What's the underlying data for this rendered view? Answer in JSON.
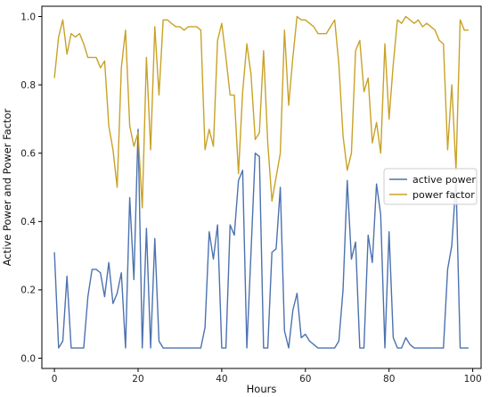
{
  "chart_data": {
    "type": "line",
    "title": "",
    "xlabel": "Hours",
    "ylabel": "Active Power and Power Factor",
    "xlim": [
      -3,
      102
    ],
    "ylim": [
      -0.03,
      1.03
    ],
    "xticks": [
      0,
      20,
      40,
      60,
      80,
      100
    ],
    "yticks": [
      0.0,
      0.2,
      0.4,
      0.6,
      0.8,
      1.0
    ],
    "x_tick_labels": [
      "0",
      "20",
      "40",
      "60",
      "80",
      "100"
    ],
    "y_tick_labels": [
      "0.0",
      "0.2",
      "0.4",
      "0.6",
      "0.8",
      "1.0"
    ],
    "grid": false,
    "legend": "center-right",
    "series": [
      {
        "name": "active power",
        "color": "#4c72b0",
        "x": [
          0,
          1,
          2,
          3,
          4,
          5,
          6,
          7,
          8,
          9,
          10,
          11,
          12,
          13,
          14,
          15,
          16,
          17,
          18,
          19,
          20,
          21,
          22,
          23,
          24,
          25,
          26,
          27,
          28,
          29,
          30,
          31,
          32,
          33,
          34,
          35,
          36,
          37,
          38,
          39,
          40,
          41,
          42,
          43,
          44,
          45,
          46,
          47,
          48,
          49,
          50,
          51,
          52,
          53,
          54,
          55,
          56,
          57,
          58,
          59,
          60,
          61,
          62,
          63,
          64,
          65,
          66,
          67,
          68,
          69,
          70,
          71,
          72,
          73,
          74,
          75,
          76,
          77,
          78,
          79,
          80,
          81,
          82,
          83,
          84,
          85,
          86,
          87,
          88,
          89,
          90,
          91,
          92,
          93,
          94,
          95,
          96,
          97,
          98,
          99
        ],
        "values": [
          0.31,
          0.03,
          0.05,
          0.24,
          0.03,
          0.03,
          0.03,
          0.03,
          0.18,
          0.26,
          0.26,
          0.25,
          0.18,
          0.28,
          0.16,
          0.19,
          0.25,
          0.03,
          0.47,
          0.23,
          0.67,
          0.03,
          0.38,
          0.03,
          0.35,
          0.05,
          0.03,
          0.03,
          0.03,
          0.03,
          0.03,
          0.03,
          0.03,
          0.03,
          0.03,
          0.03,
          0.09,
          0.37,
          0.29,
          0.39,
          0.03,
          0.03,
          0.39,
          0.36,
          0.52,
          0.55,
          0.03,
          0.31,
          0.6,
          0.59,
          0.03,
          0.03,
          0.31,
          0.32,
          0.5,
          0.08,
          0.03,
          0.14,
          0.19,
          0.06,
          0.07,
          0.05,
          0.04,
          0.03,
          0.03,
          0.03,
          0.03,
          0.03,
          0.05,
          0.2,
          0.52,
          0.29,
          0.34,
          0.03,
          0.03,
          0.36,
          0.28,
          0.51,
          0.42,
          0.03,
          0.37,
          0.06,
          0.03,
          0.03,
          0.06,
          0.04,
          0.03,
          0.03,
          0.03,
          0.03,
          0.03,
          0.03,
          0.03,
          0.03,
          0.26,
          0.33,
          0.52,
          0.03,
          0.03,
          0.03
        ]
      },
      {
        "name": "power factor",
        "color": "#c9a227",
        "x": [
          0,
          1,
          2,
          3,
          4,
          5,
          6,
          7,
          8,
          9,
          10,
          11,
          12,
          13,
          14,
          15,
          16,
          17,
          18,
          19,
          20,
          21,
          22,
          23,
          24,
          25,
          26,
          27,
          28,
          29,
          30,
          31,
          32,
          33,
          34,
          35,
          36,
          37,
          38,
          39,
          40,
          41,
          42,
          43,
          44,
          45,
          46,
          47,
          48,
          49,
          50,
          51,
          52,
          53,
          54,
          55,
          56,
          57,
          58,
          59,
          60,
          61,
          62,
          63,
          64,
          65,
          66,
          67,
          68,
          69,
          70,
          71,
          72,
          73,
          74,
          75,
          76,
          77,
          78,
          79,
          80,
          81,
          82,
          83,
          84,
          85,
          86,
          87,
          88,
          89,
          90,
          91,
          92,
          93,
          94,
          95,
          96,
          97,
          98,
          99
        ],
        "values": [
          0.82,
          0.94,
          0.99,
          0.89,
          0.95,
          0.94,
          0.95,
          0.92,
          0.88,
          0.88,
          0.88,
          0.85,
          0.87,
          0.68,
          0.61,
          0.5,
          0.85,
          0.96,
          0.68,
          0.62,
          0.66,
          0.44,
          0.88,
          0.61,
          0.97,
          0.77,
          0.99,
          0.99,
          0.98,
          0.97,
          0.97,
          0.96,
          0.97,
          0.97,
          0.97,
          0.96,
          0.61,
          0.67,
          0.62,
          0.93,
          0.98,
          0.88,
          0.77,
          0.77,
          0.54,
          0.78,
          0.92,
          0.83,
          0.64,
          0.66,
          0.9,
          0.63,
          0.46,
          0.53,
          0.6,
          0.96,
          0.74,
          0.88,
          1.0,
          0.99,
          0.99,
          0.98,
          0.97,
          0.95,
          0.95,
          0.95,
          0.97,
          0.99,
          0.86,
          0.65,
          0.55,
          0.6,
          0.9,
          0.93,
          0.78,
          0.82,
          0.63,
          0.69,
          0.6,
          0.92,
          0.7,
          0.86,
          0.99,
          0.98,
          1.0,
          0.99,
          0.98,
          0.99,
          0.97,
          0.98,
          0.97,
          0.96,
          0.93,
          0.92,
          0.61,
          0.8,
          0.55,
          0.99,
          0.96,
          0.96
        ]
      }
    ]
  }
}
